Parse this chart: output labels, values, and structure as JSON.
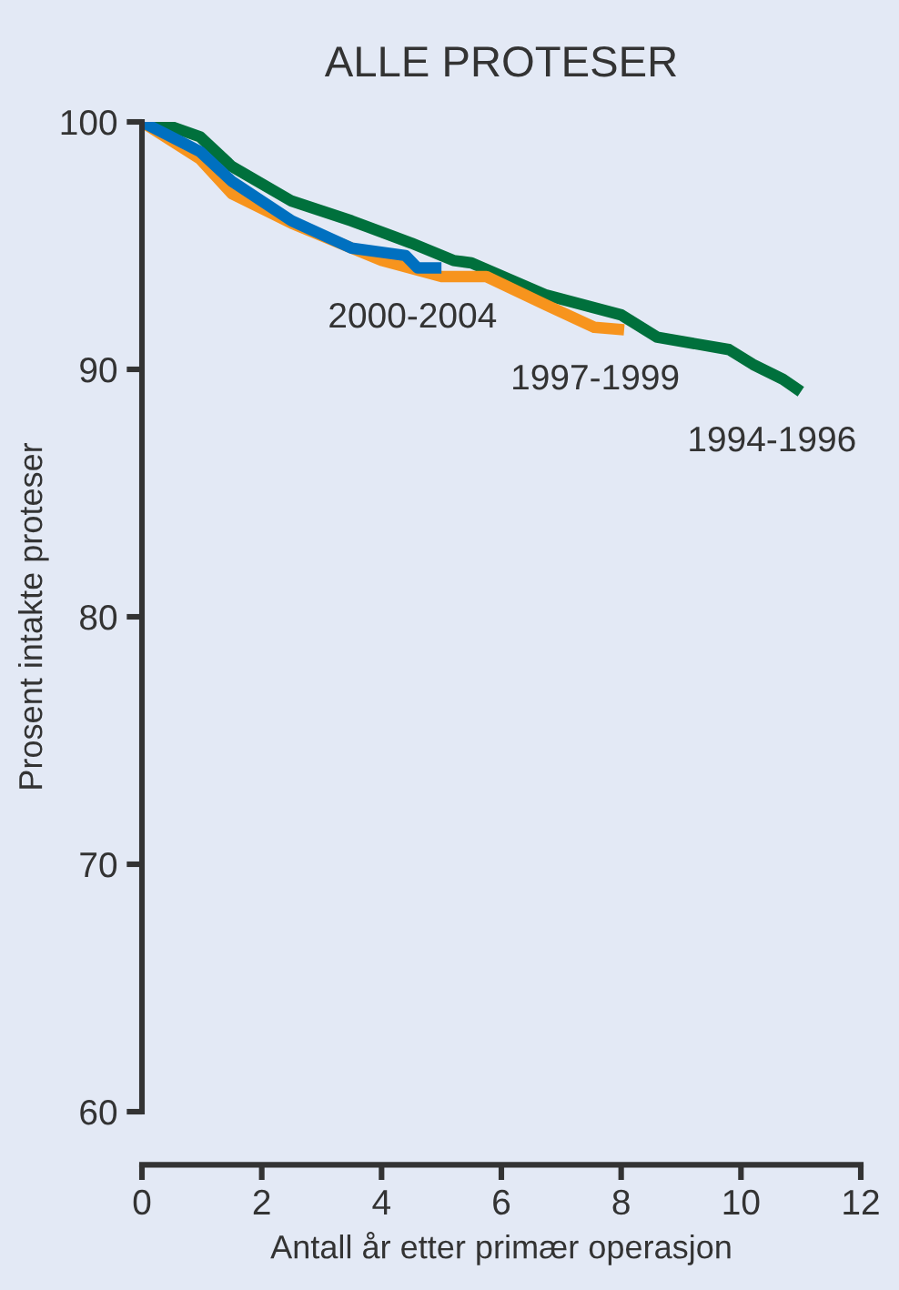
{
  "chart_data": {
    "type": "line",
    "title": "ALLE PROTESER",
    "xlabel": "Antall år etter primær operasjon",
    "ylabel": "Prosent intakte proteser",
    "xlim": [
      0,
      12
    ],
    "xticks": [
      0,
      2,
      4,
      6,
      8,
      10,
      12
    ],
    "ylim": [
      60,
      100
    ],
    "yticks": [
      60,
      70,
      80,
      90,
      100
    ],
    "grid": false,
    "legend": false,
    "series": [
      {
        "name": "1994-1996",
        "color": "#00703c",
        "x": [
          0,
          0.5,
          0.97,
          1.5,
          2.5,
          3.5,
          4.5,
          5.2,
          5.5,
          6.75,
          8.0,
          8.6,
          9.8,
          10.2,
          10.7,
          11.0
        ],
        "values": [
          100,
          99.8,
          99.4,
          98.2,
          96.8,
          96.0,
          95.1,
          94.4,
          94.3,
          93.0,
          92.2,
          91.3,
          90.8,
          90.2,
          89.6,
          89.1
        ]
      },
      {
        "name": "1997-1999",
        "color": "#f7941d",
        "x": [
          0,
          0.97,
          1.5,
          2.5,
          4.0,
          5.0,
          5.75,
          6.75,
          7.55,
          8.05
        ],
        "values": [
          100,
          98.5,
          97.1,
          95.9,
          94.4,
          93.75,
          93.75,
          92.6,
          91.7,
          91.6
        ]
      },
      {
        "name": "2000-2004",
        "color": "#0070c0",
        "x": [
          0,
          0.97,
          1.5,
          2.5,
          3.5,
          4.4,
          4.6,
          5.0
        ],
        "values": [
          100,
          98.8,
          97.6,
          96.0,
          94.9,
          94.6,
          94.1,
          94.1
        ]
      }
    ]
  }
}
